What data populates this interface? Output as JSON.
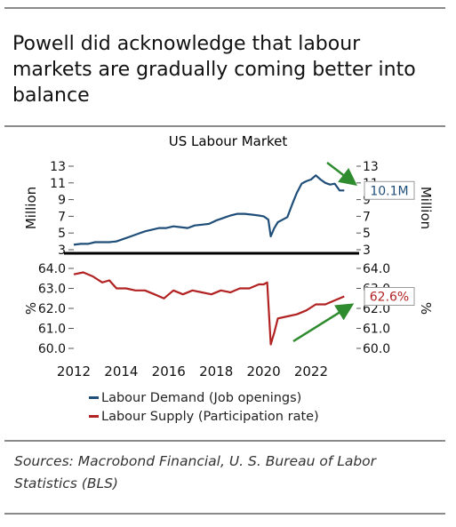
{
  "headline": "Powell did acknowledge that labour markets are gradually coming better into balance",
  "chart_title": "US Labour Market",
  "sources": "Sources: Macrobond Financial, U. S. Bureau of Labor Statistics (BLS)",
  "colors": {
    "demand": "#1f4e79",
    "supply": "#b22222",
    "arrow": "#2e8b2e",
    "value_box_border": "#999999"
  },
  "legend": [
    {
      "label": "Labour Demand (Job openings)",
      "color": "#1f4e79"
    },
    {
      "label": "Labour Supply (Participation rate)",
      "color": "#b22222"
    }
  ],
  "chart_data": [
    {
      "type": "line",
      "title": "US Labour Market",
      "ylabel": "Million",
      "y2label": "Million",
      "ylim": [
        3,
        13
      ],
      "yticks": [
        "3",
        "5",
        "7",
        "9",
        "11",
        "13"
      ],
      "xlim": [
        2012,
        2023.8
      ],
      "grid": false,
      "series": [
        {
          "name": "Labour Demand (Job openings)",
          "x": [
            2012.0,
            2012.3,
            2012.6,
            2012.9,
            2013.2,
            2013.5,
            2013.8,
            2014.1,
            2014.4,
            2014.7,
            2015.0,
            2015.3,
            2015.6,
            2015.9,
            2016.2,
            2016.5,
            2016.8,
            2017.1,
            2017.4,
            2017.7,
            2018.0,
            2018.3,
            2018.6,
            2018.9,
            2019.2,
            2019.5,
            2019.8,
            2020.0,
            2020.2,
            2020.3,
            2020.45,
            2020.6,
            2020.8,
            2021.0,
            2021.2,
            2021.4,
            2021.6,
            2021.8,
            2022.0,
            2022.2,
            2022.4,
            2022.6,
            2022.8,
            2023.0,
            2023.2,
            2023.4
          ],
          "values": [
            3.6,
            3.7,
            3.7,
            3.9,
            3.9,
            3.9,
            4.0,
            4.3,
            4.6,
            4.9,
            5.2,
            5.4,
            5.6,
            5.6,
            5.8,
            5.7,
            5.6,
            5.9,
            6.0,
            6.1,
            6.5,
            6.8,
            7.1,
            7.3,
            7.3,
            7.2,
            7.1,
            7.0,
            6.6,
            4.6,
            5.6,
            6.3,
            6.6,
            6.9,
            8.4,
            9.8,
            10.9,
            11.2,
            11.4,
            11.9,
            11.4,
            11.0,
            10.8,
            10.9,
            10.1,
            10.1
          ]
        }
      ],
      "end_value": "10.1M"
    },
    {
      "type": "line",
      "ylabel": "%",
      "y2label": "%",
      "ylim": [
        60.0,
        64.0
      ],
      "yticks": [
        "60.0",
        "61.0",
        "62.0",
        "63.0",
        "64.0"
      ],
      "xlim": [
        2012,
        2023.8
      ],
      "xticks": [
        "2012",
        "2014",
        "2016",
        "2018",
        "2020",
        "2022"
      ],
      "grid": false,
      "series": [
        {
          "name": "Labour Supply (Participation rate)",
          "x": [
            2012.0,
            2012.4,
            2012.8,
            2013.2,
            2013.5,
            2013.8,
            2014.2,
            2014.6,
            2015.0,
            2015.4,
            2015.8,
            2016.2,
            2016.6,
            2017.0,
            2017.4,
            2017.8,
            2018.2,
            2018.6,
            2019.0,
            2019.4,
            2019.8,
            2020.0,
            2020.15,
            2020.3,
            2020.45,
            2020.6,
            2021.0,
            2021.4,
            2021.8,
            2022.2,
            2022.6,
            2023.0,
            2023.4
          ],
          "values": [
            63.7,
            63.8,
            63.6,
            63.3,
            63.4,
            63.0,
            63.0,
            62.9,
            62.9,
            62.7,
            62.5,
            62.9,
            62.7,
            62.9,
            62.8,
            62.7,
            62.9,
            62.8,
            63.0,
            63.0,
            63.2,
            63.2,
            63.3,
            60.2,
            60.8,
            61.5,
            61.6,
            61.7,
            61.9,
            62.2,
            62.2,
            62.4,
            62.6
          ]
        }
      ],
      "end_value": "62.6%"
    }
  ]
}
